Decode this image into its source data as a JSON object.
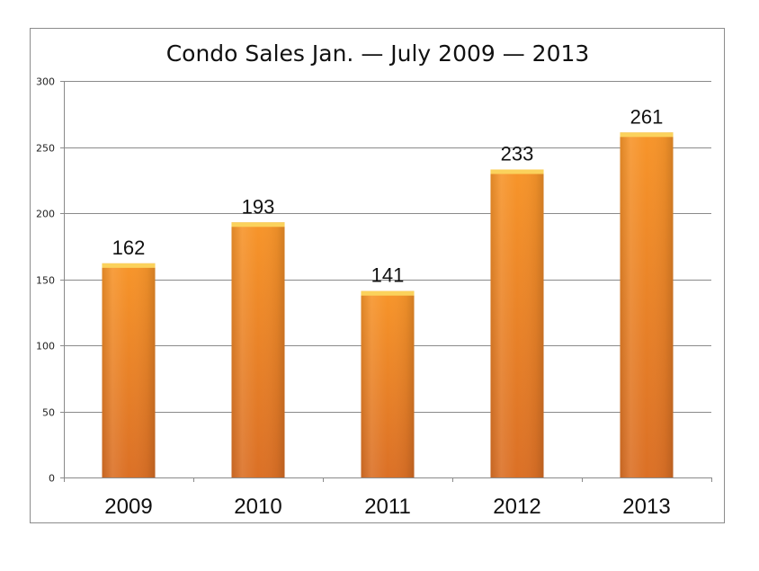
{
  "chart_data": {
    "type": "bar",
    "title": "Condo Sales Jan. — July 2009 — 2013",
    "xlabel": "",
    "ylabel": "",
    "categories": [
      "2009",
      "2010",
      "2011",
      "2012",
      "2013"
    ],
    "values": [
      162,
      193,
      141,
      233,
      261
    ],
    "data_labels": [
      "162",
      "193",
      "141",
      "233",
      "261"
    ],
    "ylim": [
      0,
      300
    ],
    "yticks": [
      "0",
      "50",
      "100",
      "150",
      "200",
      "250",
      "300"
    ],
    "grid": true,
    "legend": "none",
    "bar_color": "#f7952a",
    "bar_color_dark": "#db7026",
    "bar_top_color": "#fbd25c"
  }
}
